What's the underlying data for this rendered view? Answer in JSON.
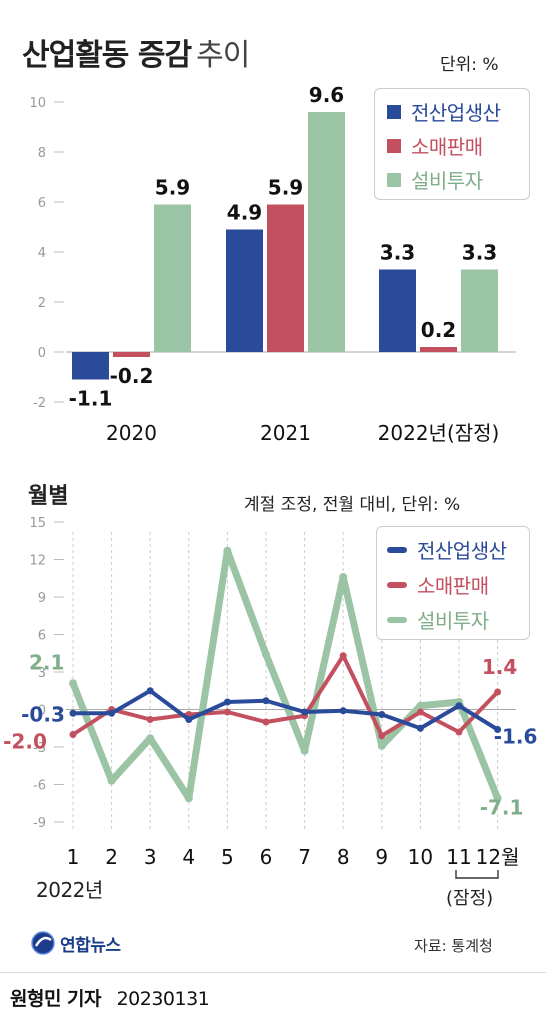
{
  "header": {
    "title_bold": "산업활동 증감",
    "title_light": "추이",
    "unit": "단위: %"
  },
  "monthly_section": {
    "title": "월별",
    "unit": "계절 조정, 전월 대비, 단위: %"
  },
  "footer": {
    "brand": "연합뉴스",
    "source": "자료: 통계청",
    "reporter": "원형민 기자",
    "date": "20230131"
  },
  "colors": {
    "production": "#2a4a9a",
    "sales": "#c3505f",
    "investment": "#9bc4a4"
  },
  "chart_data": [
    {
      "type": "bar",
      "categories": [
        "2020",
        "2021",
        "2022년(잠정)"
      ],
      "series": [
        {
          "name": "전산업생산",
          "values": [
            -1.1,
            4.9,
            3.3
          ]
        },
        {
          "name": "소매판매",
          "values": [
            -0.2,
            5.9,
            0.2
          ]
        },
        {
          "name": "설비투자",
          "values": [
            5.9,
            9.6,
            3.3
          ]
        }
      ],
      "value_labels": [
        [
          "-1.1",
          "4.9",
          "3.3"
        ],
        [
          "-0.2",
          "5.9",
          "0.2"
        ],
        [
          "5.9",
          "9.6",
          "3.3"
        ]
      ],
      "yticks": [
        "10",
        "8",
        "6",
        "4",
        "2",
        "0",
        "-2"
      ],
      "ylim": [
        -2,
        10
      ],
      "legend": "top-right",
      "grid": false
    },
    {
      "type": "line",
      "x": [
        "1",
        "2",
        "3",
        "4",
        "5",
        "6",
        "7",
        "8",
        "9",
        "10",
        "11",
        "12월"
      ],
      "x_caption_year": "2022년",
      "x_caption_prelim": "(잠정)",
      "series": [
        {
          "name": "전산업생산",
          "values": [
            -0.3,
            -0.3,
            1.5,
            -0.8,
            0.6,
            0.7,
            -0.2,
            -0.1,
            -0.4,
            -1.5,
            0.3,
            -1.6
          ]
        },
        {
          "name": "소매판매",
          "values": [
            -2.0,
            0.0,
            -0.8,
            -0.4,
            -0.2,
            -1.0,
            -0.5,
            4.3,
            -2.1,
            -0.2,
            -1.8,
            1.4
          ]
        },
        {
          "name": "설비투자",
          "values": [
            2.1,
            -5.7,
            -2.3,
            -7.1,
            12.7,
            4.4,
            -3.3,
            10.6,
            -2.9,
            0.3,
            0.6,
            -7.1
          ]
        }
      ],
      "value_labels": {
        "first": [
          "-0.3",
          "-2.0",
          "2.1"
        ],
        "last": [
          "-1.6",
          "1.4",
          "-7.1"
        ]
      },
      "yticks": [
        "15",
        "12",
        "9",
        "6",
        "3",
        "0",
        "-3",
        "-6",
        "-9"
      ],
      "ylim": [
        -9,
        15
      ],
      "legend": "top-right",
      "grid": false
    }
  ]
}
